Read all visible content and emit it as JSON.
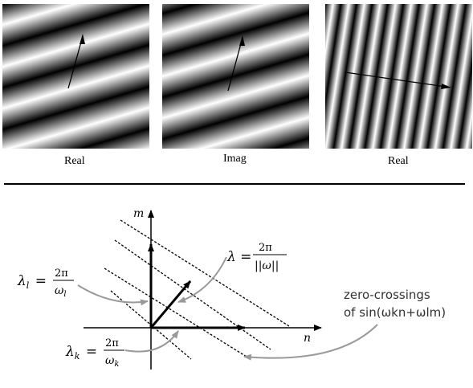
{
  "panels": [
    {
      "caption": "Real"
    },
    {
      "caption": "Imag"
    },
    {
      "caption": "Real"
    }
  ],
  "diagram": {
    "axis_m": "m",
    "axis_n": "n",
    "lambda_l": {
      "lhs": "λ",
      "sub": "l",
      "num": "2π",
      "den": "ω",
      "den_sub": "l"
    },
    "lambda_k": {
      "lhs": "λ",
      "sub": "k",
      "num": "2π",
      "den": "ω",
      "den_sub": "k"
    },
    "lambda": {
      "lhs": "λ",
      "num": "2π",
      "den": "||ω||"
    },
    "zero_crossings_line1": "zero-crossings",
    "zero_crossings_line2": "of sin(ωkn+ωlm)"
  }
}
